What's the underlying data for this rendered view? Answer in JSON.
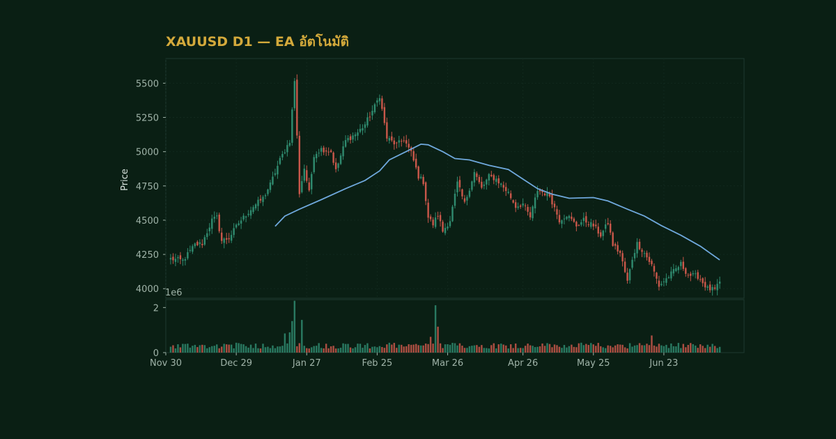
{
  "chart_data": {
    "type": "candlestick",
    "title": "XAUUSD D1 — EA อัตโนมัติ",
    "ylabel": "Price",
    "price_ylim": [
      3930,
      5680
    ],
    "price_yticks": [
      4000,
      4250,
      4500,
      4750,
      5000,
      5250,
      5500
    ],
    "volume_ylim": [
      0,
      2350000
    ],
    "volume_yticks": [
      0,
      2
    ],
    "volume_scale_label": "1e6",
    "x_start": "2025-11-30",
    "x_end": "2026-07-26",
    "x_ticks": [
      {
        "date": "2025-11-30",
        "label": "Nov 30"
      },
      {
        "date": "2025-12-29",
        "label": "Dec 29"
      },
      {
        "date": "2026-01-27",
        "label": "Jan 27"
      },
      {
        "date": "2026-02-25",
        "label": "Feb 25"
      },
      {
        "date": "2026-03-26",
        "label": "Mar 26"
      },
      {
        "date": "2026-04-26",
        "label": "Apr 26"
      },
      {
        "date": "2026-05-25",
        "label": "May 25"
      },
      {
        "date": "2026-06-23",
        "label": "Jun 23"
      }
    ],
    "close_anchors": [
      [
        "2025-12-02",
        4218
      ],
      [
        "2025-12-07",
        4205
      ],
      [
        "2025-12-12",
        4320
      ],
      [
        "2025-12-15",
        4330
      ],
      [
        "2025-12-19",
        4500
      ],
      [
        "2025-12-21",
        4520
      ],
      [
        "2025-12-23",
        4350
      ],
      [
        "2025-12-26",
        4370
      ],
      [
        "2025-12-30",
        4480
      ],
      [
        "2026-01-05",
        4600
      ],
      [
        "2026-01-09",
        4660
      ],
      [
        "2026-01-12",
        4760
      ],
      [
        "2026-01-16",
        4940
      ],
      [
        "2026-01-20",
        5080
      ],
      [
        "2026-01-22",
        5520
      ],
      [
        "2026-01-24",
        4700
      ],
      [
        "2026-01-26",
        4880
      ],
      [
        "2026-01-28",
        4700
      ],
      [
        "2026-01-30",
        4980
      ],
      [
        "2026-02-02",
        5020
      ],
      [
        "2026-02-06",
        5000
      ],
      [
        "2026-02-08",
        4860
      ],
      [
        "2026-02-12",
        5080
      ],
      [
        "2026-02-17",
        5140
      ],
      [
        "2026-02-20",
        5200
      ],
      [
        "2026-02-24",
        5330
      ],
      [
        "2026-02-26",
        5410
      ],
      [
        "2026-03-01",
        5100
      ],
      [
        "2026-03-05",
        5050
      ],
      [
        "2026-03-08",
        5090
      ],
      [
        "2026-03-11",
        4990
      ],
      [
        "2026-03-14",
        4820
      ],
      [
        "2026-03-16",
        4780
      ],
      [
        "2026-03-18",
        4520
      ],
      [
        "2026-03-20",
        4470
      ],
      [
        "2026-03-22",
        4540
      ],
      [
        "2026-03-24",
        4420
      ],
      [
        "2026-03-27",
        4500
      ],
      [
        "2026-03-30",
        4770
      ],
      [
        "2026-04-02",
        4620
      ],
      [
        "2026-04-06",
        4850
      ],
      [
        "2026-04-09",
        4730
      ],
      [
        "2026-04-12",
        4820
      ],
      [
        "2026-04-15",
        4800
      ],
      [
        "2026-04-20",
        4700
      ],
      [
        "2026-04-23",
        4600
      ],
      [
        "2026-04-26",
        4620
      ],
      [
        "2026-04-29",
        4520
      ],
      [
        "2026-05-02",
        4720
      ],
      [
        "2026-05-07",
        4680
      ],
      [
        "2026-05-11",
        4500
      ],
      [
        "2026-05-14",
        4540
      ],
      [
        "2026-05-18",
        4460
      ],
      [
        "2026-05-21",
        4500
      ],
      [
        "2026-05-25",
        4460
      ],
      [
        "2026-05-28",
        4390
      ],
      [
        "2026-05-31",
        4480
      ],
      [
        "2026-06-02",
        4320
      ],
      [
        "2026-06-05",
        4260
      ],
      [
        "2026-06-08",
        4050
      ],
      [
        "2026-06-10",
        4220
      ],
      [
        "2026-06-12",
        4330
      ],
      [
        "2026-06-15",
        4260
      ],
      [
        "2026-06-18",
        4170
      ],
      [
        "2026-06-21",
        4020
      ],
      [
        "2026-06-25",
        4090
      ],
      [
        "2026-06-30",
        4180
      ],
      [
        "2026-07-03",
        4100
      ],
      [
        "2026-07-07",
        4090
      ],
      [
        "2026-07-11",
        4000
      ],
      [
        "2026-07-14",
        3990
      ],
      [
        "2026-07-16",
        4040
      ]
    ],
    "volume_spikes": [
      [
        "2026-01-22",
        2300000
      ],
      [
        "2026-01-21",
        1400000
      ],
      [
        "2026-01-25",
        1450000
      ],
      [
        "2026-03-21",
        2100000
      ],
      [
        "2026-03-22",
        1150000
      ],
      [
        "2026-03-19",
        700000
      ],
      [
        "2026-06-18",
        760000
      ],
      [
        "2026-01-20",
        900000
      ],
      [
        "2026-01-18",
        850000
      ]
    ],
    "moving_average": {
      "start": "2026-01-14",
      "points": [
        [
          "2026-01-14",
          4455
        ],
        [
          "2026-01-18",
          4530
        ],
        [
          "2026-01-24",
          4580
        ],
        [
          "2026-02-02",
          4650
        ],
        [
          "2026-02-12",
          4730
        ],
        [
          "2026-02-20",
          4790
        ],
        [
          "2026-02-26",
          4860
        ],
        [
          "2026-03-02",
          4940
        ],
        [
          "2026-03-10",
          5010
        ],
        [
          "2026-03-15",
          5055
        ],
        [
          "2026-03-18",
          5050
        ],
        [
          "2026-03-24",
          5000
        ],
        [
          "2026-03-29",
          4950
        ],
        [
          "2026-04-04",
          4940
        ],
        [
          "2026-04-12",
          4900
        ],
        [
          "2026-04-20",
          4870
        ],
        [
          "2026-04-26",
          4800
        ],
        [
          "2026-05-02",
          4730
        ],
        [
          "2026-05-08",
          4690
        ],
        [
          "2026-05-15",
          4660
        ],
        [
          "2026-05-25",
          4665
        ],
        [
          "2026-05-31",
          4640
        ],
        [
          "2026-06-08",
          4580
        ],
        [
          "2026-06-15",
          4530
        ],
        [
          "2026-06-22",
          4460
        ],
        [
          "2026-06-30",
          4390
        ],
        [
          "2026-07-08",
          4310
        ],
        [
          "2026-07-16",
          4210
        ]
      ]
    }
  },
  "colors": {
    "background": "#0a1f14",
    "up": "#2f8a6e",
    "down": "#c8574a",
    "ma_line": "#6fa8dc",
    "title": "#d3a93b",
    "axis_border": "#1e3a2f",
    "grid": "#12291e"
  }
}
